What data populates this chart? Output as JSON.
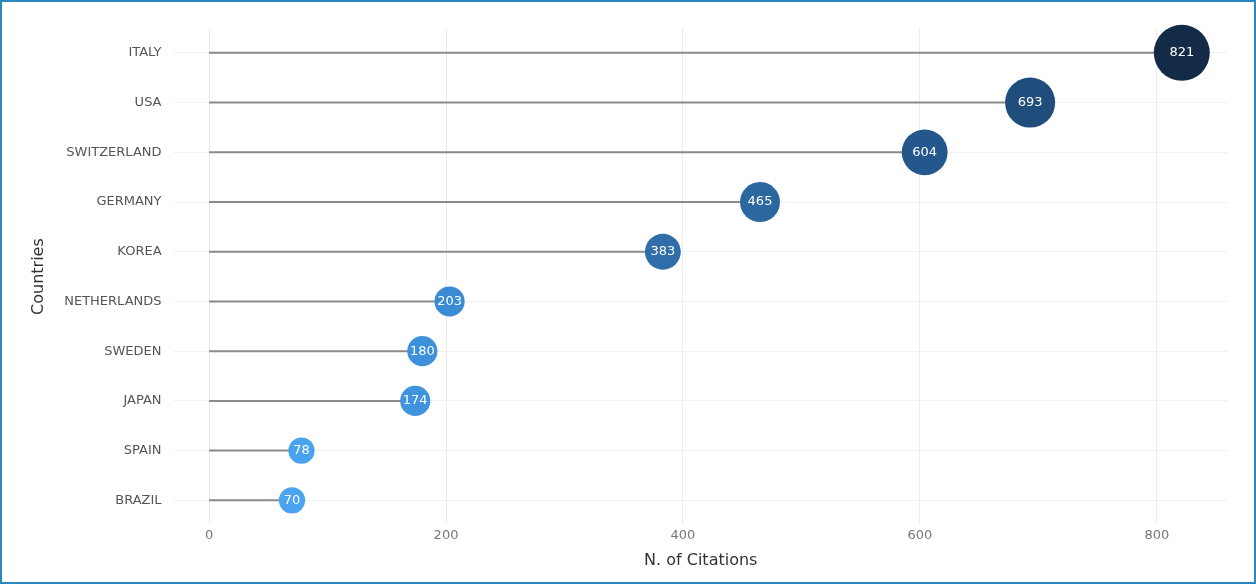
{
  "chart_data": {
    "type": "lollipop",
    "orientation": "horizontal",
    "xlabel": "N. of Citations",
    "ylabel": "Countries",
    "categories": [
      "ITALY",
      "USA",
      "SWITZERLAND",
      "GERMANY",
      "KOREA",
      "NETHERLANDS",
      "SWEDEN",
      "JAPAN",
      "SPAIN",
      "BRAZIL"
    ],
    "values": [
      821,
      693,
      604,
      465,
      383,
      203,
      180,
      174,
      78,
      70
    ],
    "sizes": [
      1,
      0.8,
      0.67,
      0.51,
      0.41,
      0.29,
      0.29,
      0.29,
      0.22,
      0.22
    ],
    "colors": [
      "#142b47",
      "#1f4d7c",
      "#24578b",
      "#2c67a0",
      "#2f6ea9",
      "#3a8bd4",
      "#3d91da",
      "#3f94dd",
      "#49a2ee",
      "#4aa4f0"
    ],
    "xlim": [
      -30,
      860
    ],
    "xticks": [
      0,
      200,
      400,
      600,
      800
    ],
    "grid": true,
    "data_labels": true,
    "legend": false
  }
}
